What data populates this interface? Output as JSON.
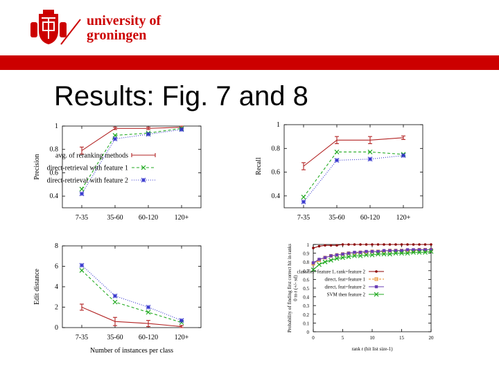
{
  "header": {
    "university_line1": "university of",
    "university_line2": "groningen",
    "brand_color": "#cc0000"
  },
  "slide": {
    "title": "Results: Fig. 7 and 8"
  },
  "chart_data": [
    {
      "id": "precision",
      "type": "line",
      "title": "",
      "xlabel": "",
      "ylabel": "Precision",
      "categories": [
        "7-35",
        "35-60",
        "60-120",
        "120+"
      ],
      "ylim": [
        0.3,
        1.0
      ],
      "yticks": [
        0.4,
        0.6,
        0.8,
        1
      ],
      "legend_position": "bottom-right",
      "series": [
        {
          "name": "avg. of reranking methods",
          "values": [
            0.79,
            0.98,
            0.98,
            0.99
          ],
          "errors": [
            0.03,
            0.01,
            0.01,
            0.01
          ],
          "color": "#b22222",
          "marker": "errorbar",
          "dash": ""
        },
        {
          "name": "direct-retrieval with feature 1",
          "values": [
            0.46,
            0.92,
            0.94,
            0.98
          ],
          "color": "#22aa22",
          "marker": "x",
          "dash": "4,3"
        },
        {
          "name": "direct-retrieval with feature 2",
          "values": [
            0.42,
            0.89,
            0.93,
            0.97
          ],
          "color": "#3333cc",
          "marker": "star",
          "dash": "1,2"
        }
      ]
    },
    {
      "id": "recall",
      "type": "line",
      "title": "",
      "xlabel": "",
      "ylabel": "Recall",
      "categories": [
        "7-35",
        "35-60",
        "60-120",
        "120+"
      ],
      "ylim": [
        0.3,
        1.0
      ],
      "yticks": [
        0.4,
        0.6,
        0.8,
        1
      ],
      "series": [
        {
          "name": "",
          "values": [
            0.65,
            0.87,
            0.87,
            0.89
          ],
          "errors": [
            0.03,
            0.03,
            0.03,
            0.015
          ],
          "color": "#b22222",
          "marker": "errorbar",
          "dash": ""
        },
        {
          "name": "",
          "values": [
            0.39,
            0.77,
            0.77,
            0.75
          ],
          "color": "#22aa22",
          "marker": "x",
          "dash": "4,3"
        },
        {
          "name": "",
          "values": [
            0.35,
            0.7,
            0.71,
            0.74
          ],
          "color": "#3333cc",
          "marker": "star",
          "dash": "1,2"
        }
      ]
    },
    {
      "id": "edit-distance",
      "type": "line",
      "title": "",
      "xlabel": "Number of instances per class",
      "ylabel": "Edit distance",
      "categories": [
        "7-35",
        "35-60",
        "60-120",
        "120+"
      ],
      "ylim": [
        0,
        8
      ],
      "yticks": [
        0,
        2,
        4,
        6,
        8
      ],
      "series": [
        {
          "name": "",
          "values": [
            2.0,
            0.6,
            0.4,
            0.1
          ],
          "errors": [
            0.3,
            0.4,
            0.3,
            0.1
          ],
          "color": "#b22222",
          "marker": "errorbar",
          "dash": ""
        },
        {
          "name": "",
          "values": [
            5.6,
            2.5,
            1.5,
            0.5
          ],
          "color": "#22aa22",
          "marker": "x",
          "dash": "4,3"
        },
        {
          "name": "",
          "values": [
            6.1,
            3.1,
            2.0,
            0.7
          ],
          "color": "#3333cc",
          "marker": "star",
          "dash": "1,2"
        }
      ]
    },
    {
      "id": "probability",
      "type": "line",
      "title": "",
      "xlabel": "rank r (hit list size-1)",
      "ylabel": "Probability of finding first correct hit in ranks 0 to r (+/- sd)",
      "xlim": [
        0,
        20
      ],
      "xticks": [
        0,
        5,
        10,
        15,
        20
      ],
      "ylim": [
        0,
        1
      ],
      "yticks": [
        0,
        0.1,
        0.2,
        0.3,
        0.4,
        0.5,
        0.6,
        0.7,
        0.8,
        0.9,
        1
      ],
      "legend_position": "bottom-right",
      "x": [
        0,
        1,
        2,
        3,
        4,
        5,
        6,
        7,
        8,
        9,
        10,
        11,
        12,
        13,
        14,
        15,
        16,
        17,
        18,
        19,
        20
      ],
      "series": [
        {
          "name": "classifier=feature 1, rank=feature 2",
          "values": [
            0.96,
            0.98,
            0.99,
            0.99,
            0.99,
            1.0,
            1.0,
            1.0,
            1.0,
            1.0,
            1.0,
            1.0,
            1.0,
            1.0,
            1.0,
            1.0,
            1.0,
            1.0,
            1.0,
            1.0,
            1.0
          ],
          "color": "#8b0000",
          "marker": "dot",
          "dash": ""
        },
        {
          "name": "direct, feat=feature 1",
          "values": [
            0.78,
            0.82,
            0.85,
            0.87,
            0.88,
            0.89,
            0.9,
            0.9,
            0.91,
            0.91,
            0.92,
            0.92,
            0.92,
            0.93,
            0.93,
            0.93,
            0.93,
            0.93,
            0.94,
            0.94,
            0.94
          ],
          "color": "#e8891c",
          "marker": "square",
          "dash": "3,2"
        },
        {
          "name": "direct, feat=feature 2",
          "values": [
            0.79,
            0.83,
            0.85,
            0.87,
            0.88,
            0.89,
            0.9,
            0.91,
            0.91,
            0.92,
            0.92,
            0.92,
            0.93,
            0.93,
            0.93,
            0.93,
            0.94,
            0.94,
            0.94,
            0.94,
            0.94
          ],
          "color": "#6a3fb5",
          "marker": "fsquare",
          "dash": ""
        },
        {
          "name": "SVM then feature 2",
          "values": [
            0.71,
            0.77,
            0.8,
            0.82,
            0.84,
            0.85,
            0.86,
            0.87,
            0.87,
            0.88,
            0.88,
            0.89,
            0.89,
            0.89,
            0.9,
            0.9,
            0.9,
            0.91,
            0.91,
            0.91,
            0.92
          ],
          "color": "#22aa22",
          "marker": "x",
          "dash": ""
        }
      ]
    }
  ]
}
